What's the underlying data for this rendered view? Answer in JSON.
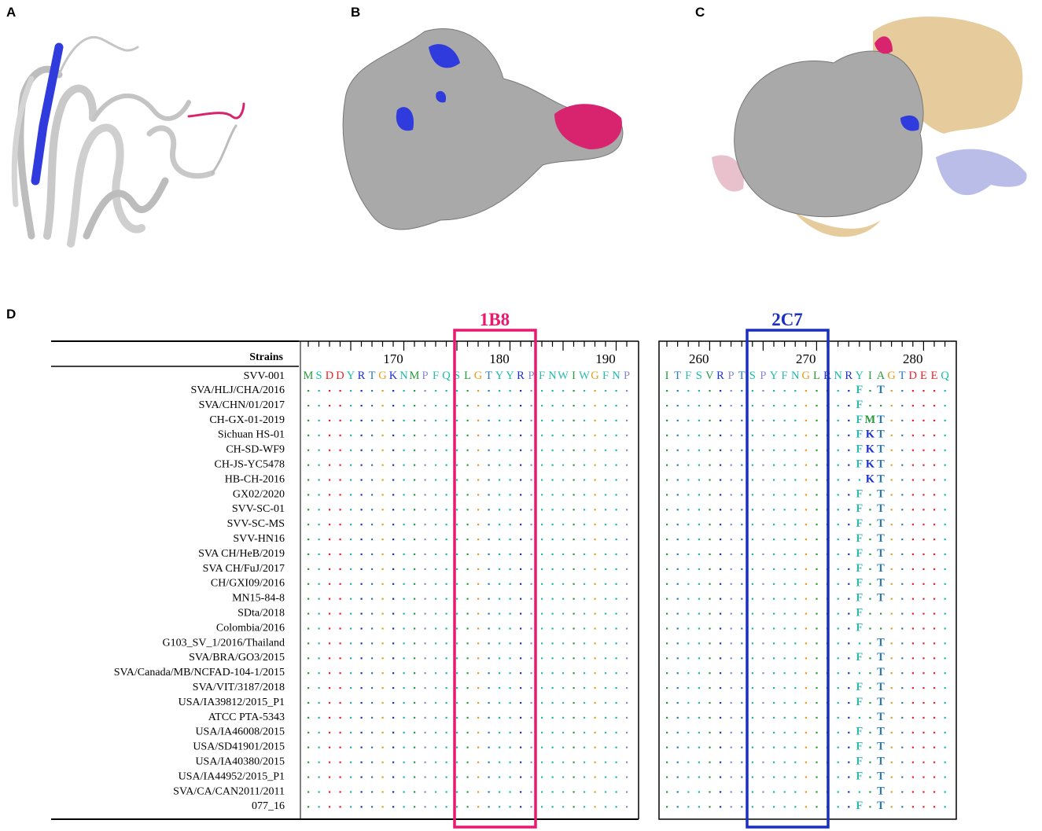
{
  "panels": {
    "a": "A",
    "b": "B",
    "c": "C",
    "d": "D"
  },
  "alignment": {
    "header": "Strains",
    "reference": "SVV-001",
    "strains": [
      "SVA/HLJ/CHA/2016",
      "SVA/CHN/01/2017",
      "CH-GX-01-2019",
      "Sichuan HS-01",
      "CH-SD-WF9",
      "CH-JS-YC5478",
      "HB-CH-2016",
      "GX02/2020",
      "SVV-SC-01",
      "SVV-SC-MS",
      "SVV-HN16",
      "SVA CH/HeB/2019",
      "SVA CH/FuJ/2017",
      "CH/GXI09/2016",
      "MN15-84-8",
      "SDta/2018",
      "Colombia/2016",
      "G103_SV_1/2016/Thailand",
      "SVA/BRA/GO3/2015",
      "SVA/Canada/MB/NCFAD-104-1/2015",
      "SVA/VIT/3187/2018",
      "USA/IA39812/2015_P1",
      "ATCC PTA-5343",
      "USA/IA46008/2015",
      "USA/SD41901/2015",
      "USA/IA40380/2015",
      "USA/IA44952/2015_P1",
      "SVA/CA/CAN2011/2011",
      "077_16"
    ],
    "left_block": {
      "ticks": [
        "170",
        "180",
        "190"
      ],
      "sequence": "MSDDYRTGKNMPFQSLGTYYRPFNWIWGFNP"
    },
    "right_block": {
      "ticks": [
        "260",
        "270",
        "280"
      ],
      "sequence": "ITFSVRPTSPYFNGLRNRYIAGTDEEQ"
    },
    "epitopes": [
      {
        "label": "1B8",
        "color": "#e8196e"
      },
      {
        "label": "2C7",
        "color": "#1a2fbf"
      }
    ],
    "variants": [
      {
        "cols": "F.T"
      },
      {
        "cols": "F.."
      },
      {
        "cols": "FMT"
      },
      {
        "cols": "FKT"
      },
      {
        "cols": "FKT"
      },
      {
        "cols": "FKT"
      },
      {
        "cols": ".KT"
      },
      {
        "cols": "F.T"
      },
      {
        "cols": "F.T"
      },
      {
        "cols": "F.T"
      },
      {
        "cols": "F.T"
      },
      {
        "cols": "F.T"
      },
      {
        "cols": "F.T"
      },
      {
        "cols": "F.T"
      },
      {
        "cols": "F.T"
      },
      {
        "cols": "F.."
      },
      {
        "cols": "F.."
      },
      {
        "cols": "..T"
      },
      {
        "cols": "F.T"
      },
      {
        "cols": "..T"
      },
      {
        "cols": "F.T"
      },
      {
        "cols": "F.T"
      },
      {
        "cols": "..T"
      },
      {
        "cols": "F.T"
      },
      {
        "cols": "F.T"
      },
      {
        "cols": "F.T"
      },
      {
        "cols": "F.T"
      },
      {
        "cols": "..T"
      },
      {
        "cols": "F.T"
      }
    ],
    "residue_colors": {
      "hydrophobic": "#2a9a3a",
      "acidic": "#e8202a",
      "basic": "#1a2fd0",
      "polar": "#1ab8a8",
      "glycine": "#e0a020",
      "proline": "#8888cc",
      "aromatic": "#30b8b0",
      "threonine": "#2a7ab0"
    }
  }
}
